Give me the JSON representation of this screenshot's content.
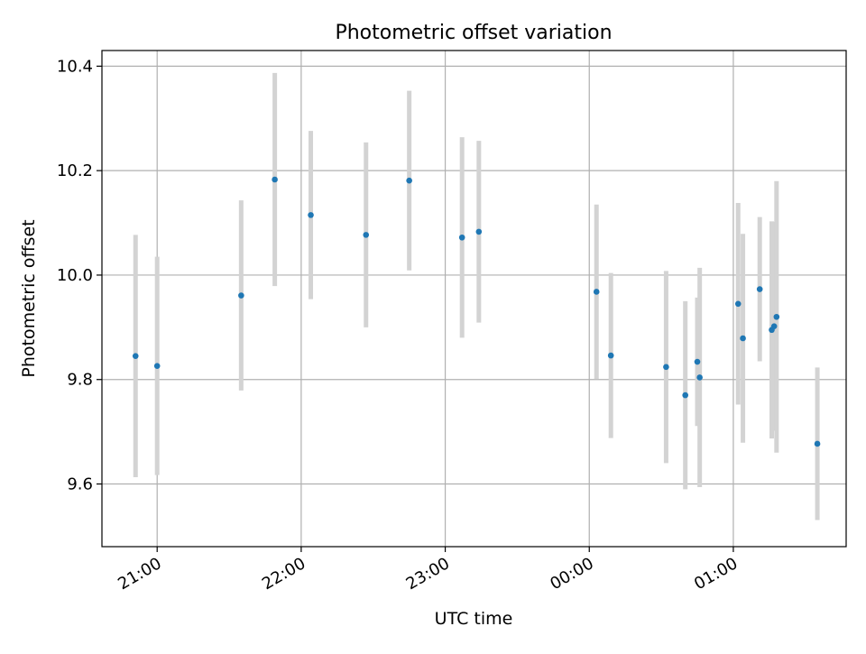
{
  "chart_data": {
    "type": "scatter",
    "title": "Photometric offset variation",
    "xlabel": "UTC time",
    "ylabel": "Photometric offset",
    "x_axis_type": "time",
    "xlim": [
      "20:37",
      "01:47"
    ],
    "ylim": [
      9.48,
      10.43
    ],
    "x_ticks": [
      "21:00",
      "22:00",
      "23:00",
      "00:00",
      "01:00"
    ],
    "y_ticks": [
      "9.6",
      "9.8",
      "10.0",
      "10.2",
      "10.4"
    ],
    "grid": true,
    "legend": "none",
    "colors": {
      "marker": "#1f77b4",
      "errorbar": "#d3d3d3",
      "grid": "#b0b0b0"
    },
    "points": [
      {
        "x": "20:51",
        "y": 9.845,
        "err": 0.232
      },
      {
        "x": "21:00",
        "y": 9.826,
        "err": 0.209
      },
      {
        "x": "21:35",
        "y": 9.961,
        "err": 0.182
      },
      {
        "x": "21:49",
        "y": 10.183,
        "err": 0.204
      },
      {
        "x": "22:04",
        "y": 10.115,
        "err": 0.161
      },
      {
        "x": "22:27",
        "y": 10.077,
        "err": 0.177
      },
      {
        "x": "22:45",
        "y": 10.181,
        "err": 0.172
      },
      {
        "x": "23:07",
        "y": 10.072,
        "err": 0.192
      },
      {
        "x": "23:14",
        "y": 10.083,
        "err": 0.174
      },
      {
        "x": "00:03",
        "y": 9.968,
        "err": 0.167
      },
      {
        "x": "00:09",
        "y": 9.846,
        "err": 0.158
      },
      {
        "x": "00:32",
        "y": 9.824,
        "err": 0.184
      },
      {
        "x": "00:40",
        "y": 9.77,
        "err": 0.18
      },
      {
        "x": "00:45",
        "y": 9.834,
        "err": 0.123
      },
      {
        "x": "00:46",
        "y": 9.804,
        "err": 0.21
      },
      {
        "x": "01:02",
        "y": 9.945,
        "err": 0.193
      },
      {
        "x": "01:04",
        "y": 9.879,
        "err": 0.2
      },
      {
        "x": "01:11",
        "y": 9.973,
        "err": 0.138
      },
      {
        "x": "01:16",
        "y": 9.895,
        "err": 0.208
      },
      {
        "x": "01:17",
        "y": 9.902,
        "err": 0.2
      },
      {
        "x": "01:18",
        "y": 9.92,
        "err": 0.26
      },
      {
        "x": "01:35",
        "y": 9.677,
        "err": 0.146
      }
    ]
  }
}
